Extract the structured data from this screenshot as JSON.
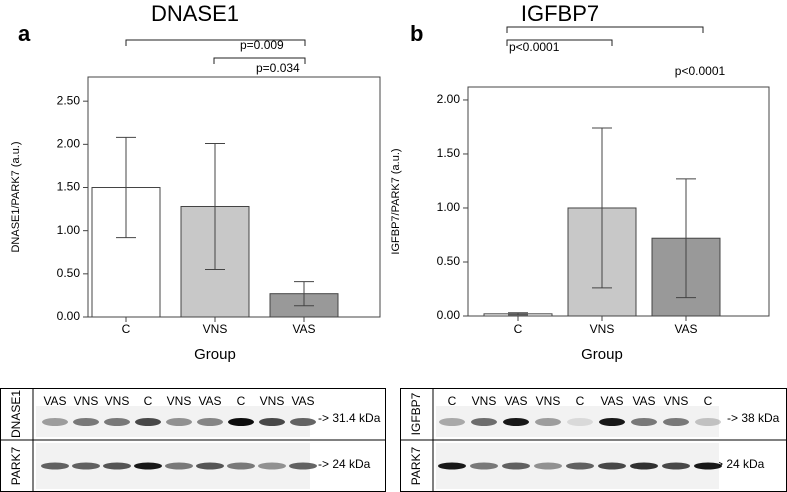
{
  "chart_data": [
    {
      "type": "bar",
      "panel": "a",
      "title": "DNASE1",
      "ylabel": "DNASE1/PARK7 (a.u.)",
      "xlabel": "Group",
      "categories": [
        "C",
        "VNS",
        "VAS"
      ],
      "values": [
        1.5,
        1.28,
        0.27
      ],
      "errors": [
        0.58,
        0.73,
        0.14
      ],
      "colors": [
        "#ffffff",
        "#c8c8c8",
        "#999999"
      ],
      "ylim": [
        0,
        2.78
      ],
      "yticks": [
        {
          "value": 0,
          "label": "0.00"
        },
        {
          "value": 0.5,
          "label": "0.50"
        },
        {
          "value": 1,
          "label": "1.00"
        },
        {
          "value": 1.5,
          "label": "1.50"
        },
        {
          "value": 2,
          "label": "2.00"
        },
        {
          "value": 2.5,
          "label": "2.50"
        }
      ],
      "annotations": [
        {
          "text": "p=0.009"
        },
        {
          "text": "p=0.034"
        }
      ]
    },
    {
      "type": "bar",
      "panel": "b",
      "title": "IGFBP7",
      "ylabel": "IGFBP7/PARK7 (a.u.)",
      "xlabel": "Group",
      "categories": [
        "C",
        "VNS",
        "VAS"
      ],
      "values": [
        0.02,
        1.0,
        0.72
      ],
      "errors": [
        0.01,
        0.74,
        0.55
      ],
      "colors": [
        "#ffffff",
        "#c8c8c8",
        "#999999"
      ],
      "ylim": [
        0,
        2.12
      ],
      "yticks": [
        {
          "value": 0,
          "label": "0.00"
        },
        {
          "value": 0.5,
          "label": "0.50"
        },
        {
          "value": 1,
          "label": "1.00"
        },
        {
          "value": 1.5,
          "label": "1.50"
        },
        {
          "value": 2,
          "label": "2.00"
        }
      ],
      "annotations": [
        {
          "text": "p<0.0001"
        },
        {
          "text": "p<0.0001"
        }
      ]
    }
  ],
  "blots": [
    {
      "rows": [
        {
          "label": "DNASE1",
          "size": "-> 31.4 kDa"
        },
        {
          "label": "PARK7",
          "size": "-> 24 kDa"
        }
      ],
      "lanes": [
        "VAS",
        "VNS",
        "VNS",
        "C",
        "VNS",
        "VAS",
        "C",
        "VNS",
        "VAS"
      ]
    },
    {
      "rows": [
        {
          "label": "IGFBP7",
          "size": "-> 38 kDa"
        },
        {
          "label": "PARK7",
          "size": "-> 24 kDa"
        }
      ],
      "lanes": [
        "C",
        "VNS",
        "VAS",
        "VNS",
        "C",
        "VAS",
        "VAS",
        "VNS",
        "C"
      ]
    }
  ]
}
